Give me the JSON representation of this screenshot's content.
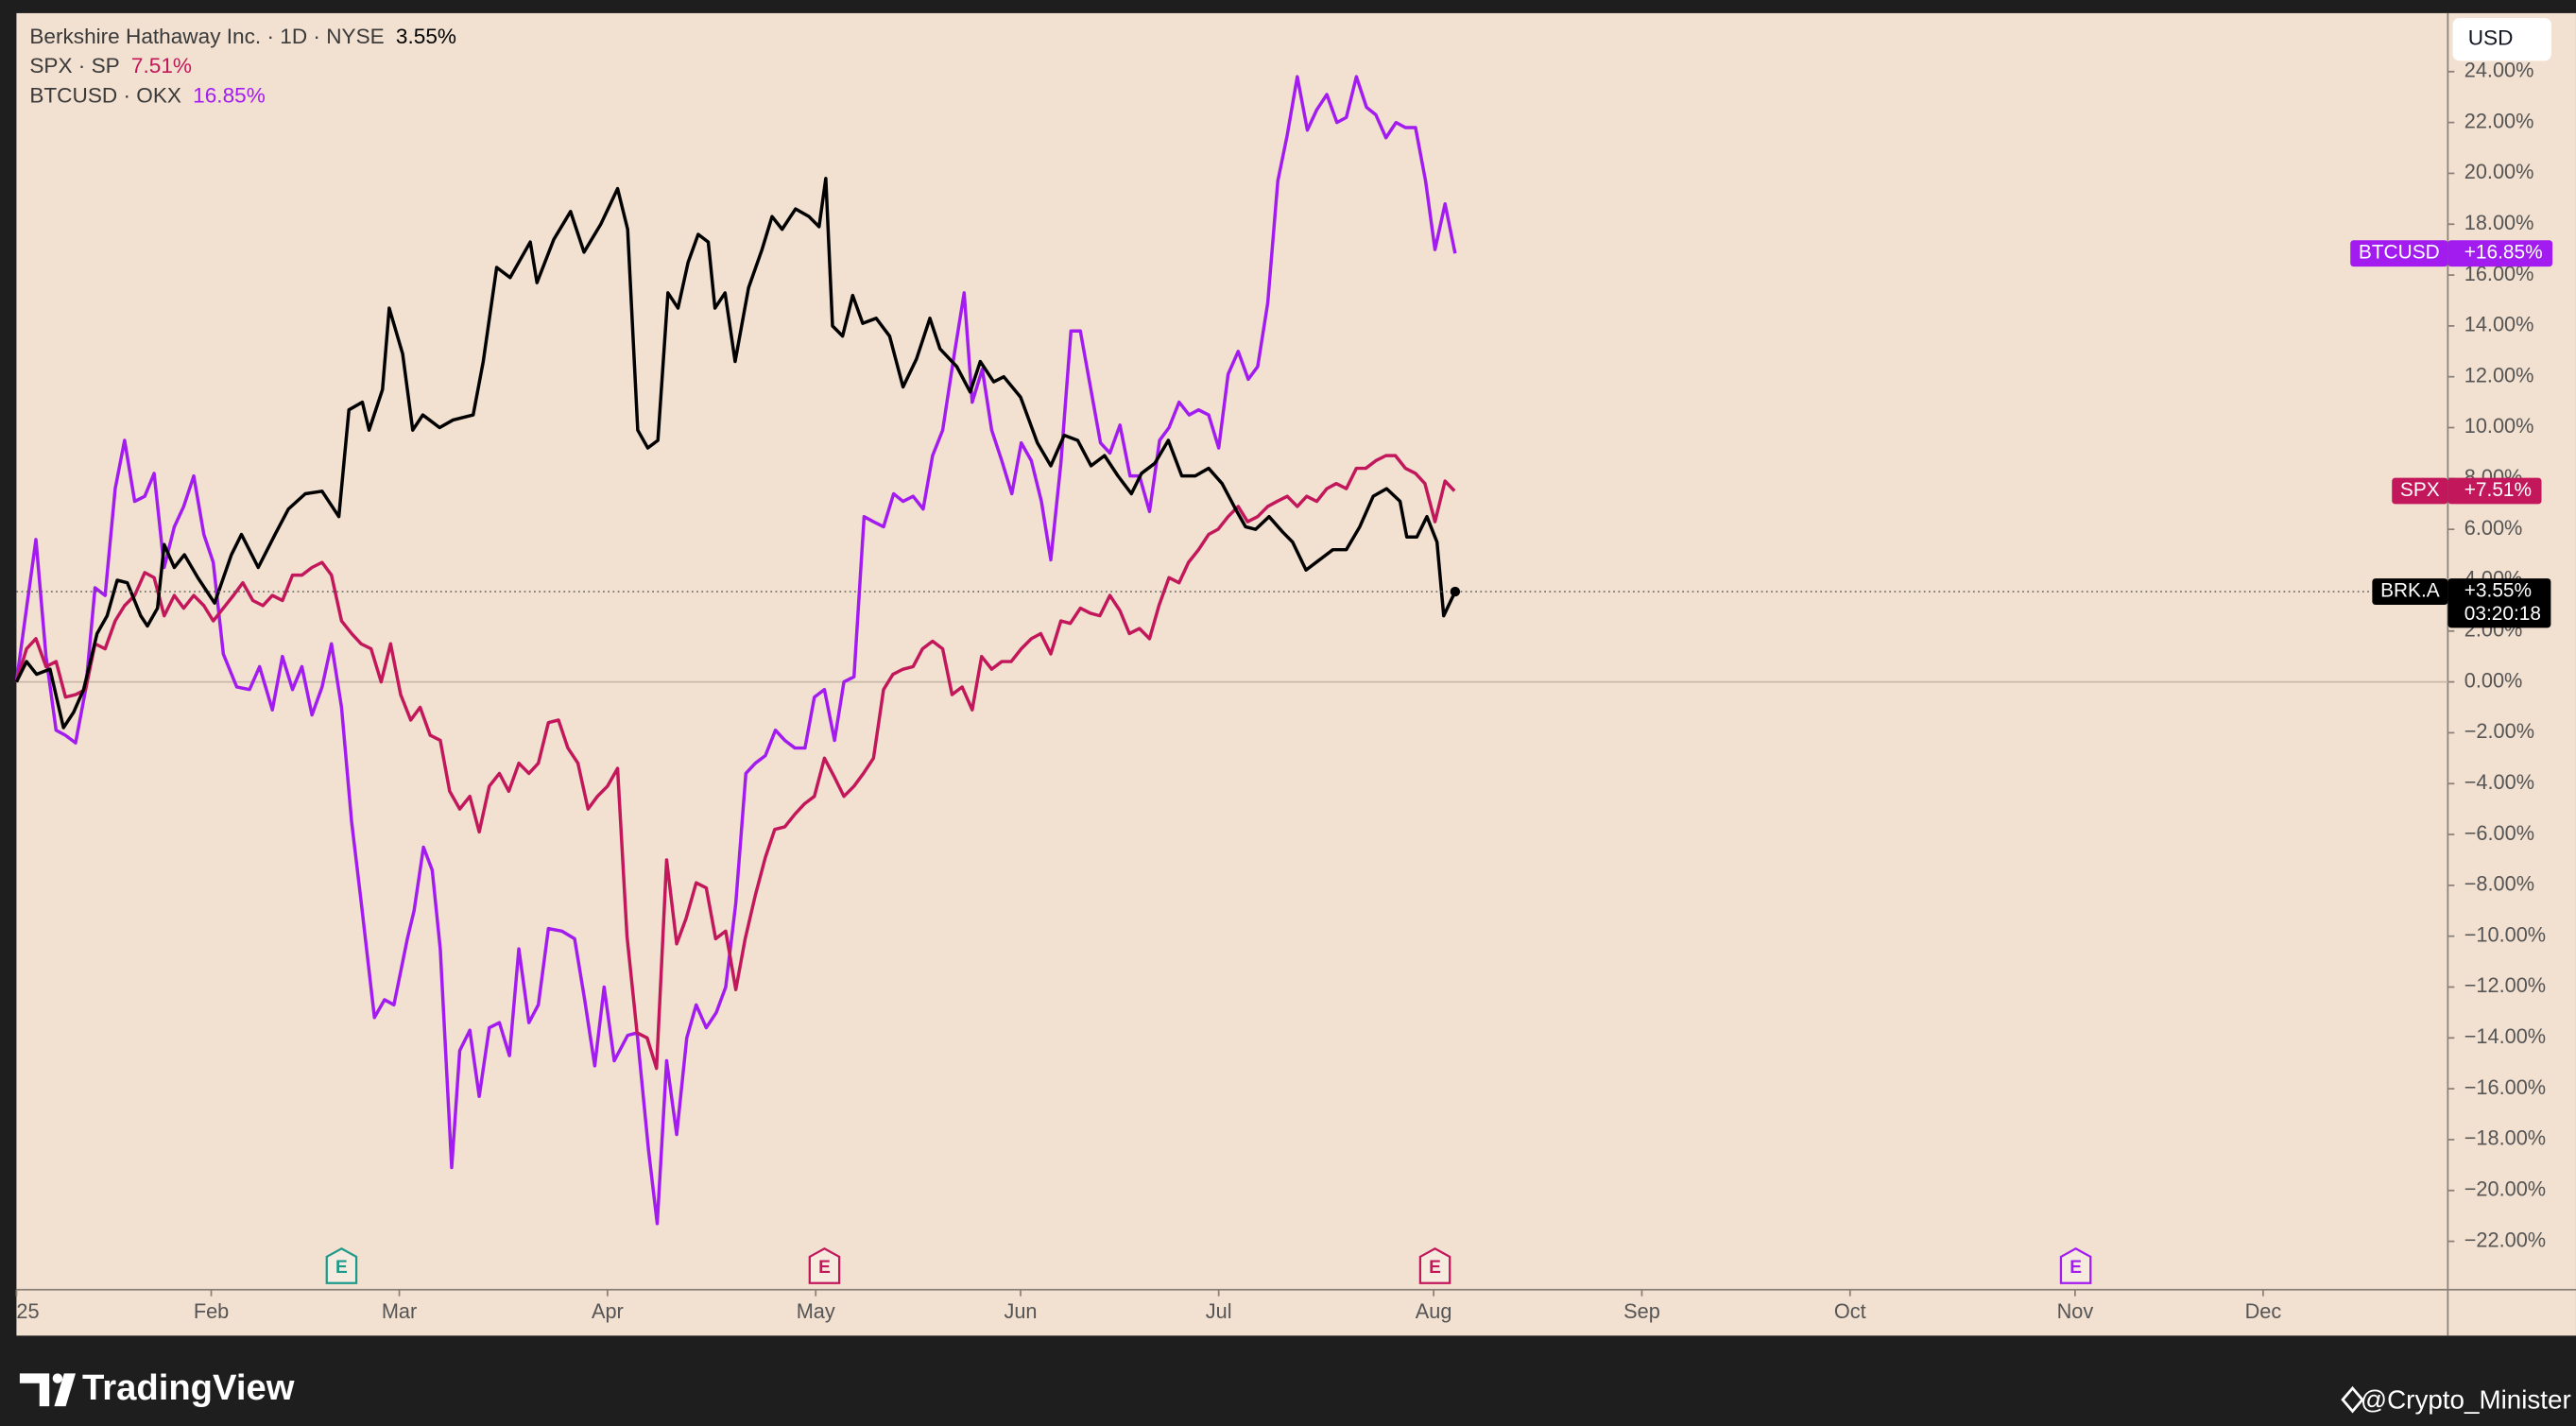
{
  "chart_data": {
    "type": "line",
    "xlim": [
      0,
      362
    ],
    "xticks": [
      {
        "value": 0,
        "label": "25"
      },
      {
        "value": 29,
        "label": "Feb"
      },
      {
        "value": 57,
        "label": "Mar"
      },
      {
        "value": 88,
        "label": "Apr"
      },
      {
        "value": 119,
        "label": "May"
      },
      {
        "value": 149.5,
        "label": "Jun"
      },
      {
        "value": 179,
        "label": "Jul"
      },
      {
        "value": 211,
        "label": "Aug"
      },
      {
        "value": 242,
        "label": "Sep"
      },
      {
        "value": 273,
        "label": "Oct"
      },
      {
        "value": 306.5,
        "label": "Nov"
      },
      {
        "value": 334.5,
        "label": "Dec"
      }
    ],
    "ylim": [
      -23.9,
      26.3
    ],
    "yticks": [
      {
        "value": -22,
        "label": "−22.00%"
      },
      {
        "value": -20,
        "label": "−20.00%"
      },
      {
        "value": -18,
        "label": "−18.00%"
      },
      {
        "value": -16,
        "label": "−16.00%"
      },
      {
        "value": -14,
        "label": "−14.00%"
      },
      {
        "value": -12,
        "label": "−12.00%"
      },
      {
        "value": -10,
        "label": "−10.00%"
      },
      {
        "value": -8,
        "label": "−8.00%"
      },
      {
        "value": -6,
        "label": "−6.00%"
      },
      {
        "value": -4,
        "label": "−4.00%"
      },
      {
        "value": -2,
        "label": "−2.00%"
      },
      {
        "value": 0,
        "label": "0.00%"
      },
      {
        "value": 2,
        "label": "2.00%"
      },
      {
        "value": 4,
        "label": "4.00%"
      },
      {
        "value": 6,
        "label": "6.00%"
      },
      {
        "value": 8,
        "label": "8.00%"
      },
      {
        "value": 10,
        "label": "10.00%"
      },
      {
        "value": 12,
        "label": "12.00%"
      },
      {
        "value": 14,
        "label": "14.00%"
      },
      {
        "value": 16,
        "label": "16.00%"
      },
      {
        "value": 18,
        "label": "18.00%"
      },
      {
        "value": 20,
        "label": "20.00%"
      },
      {
        "value": 22,
        "label": "22.00%"
      },
      {
        "value": 24,
        "label": "24.00%"
      }
    ],
    "grid": false,
    "currency": "USD",
    "series": [
      {
        "name": "Berkshire Hathaway Inc. · 1D · NYSE",
        "color": "#000000",
        "change": {
          "value": 3.55,
          "label": "3.55%"
        },
        "tag": {
          "name": "BRK.A",
          "value": 3.55,
          "label": "+3.55%",
          "countdown": "03:20:18"
        },
        "price_line": true,
        "x": [
          0,
          1.5,
          3,
          5,
          7,
          8.5,
          10,
          12,
          13.5,
          15,
          16.5,
          18.5,
          19.5,
          21,
          22,
          23.5,
          25,
          27,
          29.5,
          32,
          33.5,
          36,
          38.5,
          40.5,
          43,
          45.5,
          48,
          49.5,
          51.5,
          52.5,
          54.5,
          55.5,
          57.5,
          59,
          60.5,
          63,
          65,
          68,
          69.5,
          71.5,
          73.5,
          76.5,
          77.5,
          80,
          82.5,
          84.5,
          87,
          89.5,
          91,
          92.5,
          94,
          95.5,
          97,
          98.5,
          100,
          101.5,
          103,
          104,
          105.5,
          107,
          109,
          111,
          112.5,
          114,
          116,
          118,
          119.5,
          120.5,
          121.5,
          123,
          124.5,
          126,
          128,
          130,
          132,
          134,
          136,
          137.5,
          140,
          142,
          143.5,
          145.5,
          147,
          149.5,
          152,
          154,
          156,
          158,
          160,
          162,
          164,
          166,
          167.5,
          169.5,
          171.5,
          173.5,
          175.5,
          177.5,
          179.5,
          181.5,
          183,
          184.5,
          186.5,
          188.5,
          190,
          192,
          194,
          196,
          198,
          200,
          202,
          204,
          206,
          207,
          208.5,
          210,
          211.5,
          212.5,
          214.2
        ],
        "values": [
          0,
          0.8,
          0.3,
          0.5,
          -1.8,
          -1.2,
          -0.3,
          1.9,
          2.6,
          4.0,
          3.9,
          2.6,
          2.2,
          2.9,
          5.4,
          4.5,
          5.0,
          4.1,
          3.1,
          5.0,
          5.8,
          4.5,
          5.8,
          6.8,
          7.4,
          7.5,
          6.5,
          10.7,
          11.0,
          9.9,
          11.5,
          14.7,
          12.9,
          9.9,
          10.5,
          10.0,
          10.3,
          10.5,
          12.6,
          16.3,
          15.9,
          17.3,
          15.7,
          17.4,
          18.5,
          16.9,
          18.0,
          19.4,
          17.8,
          9.9,
          9.2,
          9.5,
          15.3,
          14.7,
          16.5,
          17.6,
          17.3,
          14.7,
          15.3,
          12.6,
          15.5,
          17.0,
          18.3,
          17.8,
          18.6,
          18.3,
          17.9,
          19.8,
          14.0,
          13.6,
          15.2,
          14.1,
          14.3,
          13.6,
          11.6,
          12.7,
          14.3,
          13.1,
          12.4,
          11.4,
          12.6,
          11.8,
          12.0,
          11.2,
          9.4,
          8.5,
          9.7,
          9.5,
          8.5,
          8.9,
          8.1,
          7.4,
          8.2,
          8.6,
          9.5,
          8.1,
          8.1,
          8.4,
          7.8,
          6.8,
          6.1,
          6.0,
          6.5,
          5.9,
          5.5,
          4.4,
          4.8,
          5.2,
          5.2,
          6.1,
          7.3,
          7.6,
          7.1,
          5.7,
          5.7,
          6.5,
          5.5,
          2.6,
          3.55
        ]
      },
      {
        "name": "SPX · SP",
        "color": "#c2185b",
        "change": {
          "value": 7.51,
          "label": "7.51%"
        },
        "tag": {
          "name": "SPX",
          "value": 7.51,
          "label": "+7.51%"
        },
        "x": [
          0,
          1.5,
          2.9,
          4.4,
          5.9,
          7.3,
          8.8,
          10.3,
          11.7,
          13.2,
          14.7,
          16.1,
          17.6,
          19.1,
          20.5,
          22.0,
          23.5,
          24.9,
          26.4,
          27.9,
          29.3,
          30.8,
          32.3,
          33.7,
          35.2,
          36.7,
          38.1,
          39.6,
          41.1,
          42.5,
          44.0,
          45.5,
          46.9,
          48.4,
          49.9,
          51.3,
          52.8,
          54.3,
          55.7,
          57.2,
          58.7,
          60.1,
          61.6,
          63.1,
          64.5,
          66.0,
          67.5,
          68.9,
          70.4,
          71.9,
          73.3,
          74.8,
          76.3,
          77.7,
          79.2,
          80.7,
          82.1,
          83.6,
          85.1,
          86.5,
          88.0,
          89.5,
          90.9,
          92.4,
          93.9,
          95.3,
          96.8,
          98.3,
          99.7,
          101.2,
          102.7,
          104.1,
          105.6,
          107.1,
          108.5,
          110.0,
          111.5,
          112.9,
          114.4,
          115.9,
          117.3,
          118.8,
          120.3,
          121.7,
          123.2,
          124.7,
          126.1,
          127.6,
          129.1,
          130.5,
          132.0,
          133.5,
          134.9,
          136.4,
          137.9,
          139.3,
          140.8,
          142.3,
          143.7,
          145.2,
          146.7,
          148.1,
          149.6,
          151.1,
          152.5,
          154.0,
          155.5,
          156.9,
          158.4,
          159.9,
          161.3,
          162.8,
          164.3,
          165.7,
          167.2,
          168.7,
          170.1,
          171.6,
          173.1,
          174.5,
          176.0,
          177.5,
          178.9,
          180.4,
          181.9,
          183.3,
          184.8,
          186.3,
          187.7,
          189.2,
          190.7,
          192.1,
          193.6,
          195.1,
          196.5,
          198.0,
          199.5,
          200.9,
          202.4,
          203.9,
          205.3,
          206.8,
          208.3,
          209.7,
          211.2,
          212.7,
          214.1
        ],
        "values": [
          0,
          1.3,
          1.7,
          0.6,
          0.8,
          -0.6,
          -0.5,
          -0.3,
          1.5,
          1.3,
          2.4,
          3.0,
          3.4,
          4.3,
          4.1,
          2.6,
          3.4,
          2.9,
          3.4,
          3.0,
          2.4,
          2.9,
          3.4,
          3.9,
          3.2,
          3.0,
          3.4,
          3.2,
          4.2,
          4.2,
          4.5,
          4.7,
          4.2,
          2.4,
          1.9,
          1.5,
          1.3,
          0,
          1.5,
          -0.5,
          -1.5,
          -1.0,
          -2.1,
          -2.3,
          -4.3,
          -5.0,
          -4.5,
          -5.9,
          -4.1,
          -3.6,
          -4.3,
          -3.2,
          -3.6,
          -3.2,
          -1.6,
          -1.5,
          -2.6,
          -3.2,
          -5.0,
          -4.5,
          -4.1,
          -3.4,
          -10.0,
          -13.8,
          -14.0,
          -15.2,
          -7.0,
          -10.3,
          -9.3,
          -7.9,
          -8.1,
          -10.1,
          -9.8,
          -12.1,
          -10.1,
          -8.4,
          -6.9,
          -5.8,
          -5.7,
          -5.2,
          -4.8,
          -4.5,
          -3.0,
          -3.7,
          -4.5,
          -4.1,
          -3.6,
          -3.0,
          -0.3,
          0.3,
          0.5,
          0.6,
          1.3,
          1.6,
          1.3,
          -0.5,
          -0.2,
          -1.1,
          1.0,
          0.5,
          0.8,
          0.8,
          1.3,
          1.7,
          1.9,
          1.1,
          2.4,
          2.3,
          2.9,
          2.7,
          2.6,
          3.4,
          2.8,
          1.9,
          2.1,
          1.7,
          3.0,
          4.1,
          3.9,
          4.7,
          5.2,
          5.8,
          6.0,
          6.5,
          6.9,
          6.3,
          6.5,
          6.9,
          7.1,
          7.3,
          6.9,
          7.3,
          7.1,
          7.6,
          7.8,
          7.6,
          8.4,
          8.4,
          8.7,
          8.9,
          8.9,
          8.4,
          8.2,
          7.8,
          6.3,
          7.9,
          7.51
        ]
      },
      {
        "name": "BTCUSD · OKX",
        "color": "#a21cf0",
        "change": {
          "value": 16.85,
          "label": "16.85%"
        },
        "tag": {
          "name": "BTCUSD",
          "value": 16.85,
          "label": "+16.85%"
        },
        "x": [
          0,
          1.5,
          2.9,
          4.4,
          5.9,
          7.3,
          8.8,
          10.3,
          11.7,
          13.2,
          14.7,
          16.1,
          17.6,
          19.1,
          20.5,
          22.0,
          23.5,
          24.9,
          26.4,
          27.9,
          29.3,
          30.8,
          32.8,
          34.7,
          36.2,
          38.1,
          39.6,
          41.1,
          42.5,
          44.0,
          45.5,
          46.9,
          48.4,
          49.9,
          51.3,
          53.3,
          54.8,
          56.2,
          58.2,
          59.2,
          60.6,
          61.9,
          63.1,
          64.8,
          66.0,
          67.5,
          68.9,
          70.4,
          71.9,
          73.4,
          74.8,
          76.3,
          77.7,
          79.2,
          81.2,
          83.1,
          84.6,
          86.1,
          87.5,
          89.0,
          91.0,
          92.4,
          94.1,
          95.4,
          96.8,
          98.3,
          99.8,
          101.2,
          102.7,
          104.2,
          105.6,
          107.1,
          108.6,
          110.0,
          111.5,
          113.0,
          114.4,
          115.9,
          117.4,
          118.8,
          120.3,
          121.8,
          123.2,
          124.7,
          126.2,
          127.6,
          129.1,
          130.6,
          132.0,
          133.5,
          135.0,
          136.4,
          137.9,
          139.4,
          141.1,
          142.3,
          143.8,
          145.2,
          146.7,
          148.2,
          149.6,
          151.1,
          152.6,
          154.0,
          155.5,
          157.0,
          158.4,
          159.9,
          161.4,
          162.8,
          164.3,
          165.8,
          167.2,
          168.7,
          170.2,
          171.6,
          173.1,
          174.6,
          176.0,
          177.5,
          179.0,
          180.4,
          181.9,
          183.4,
          184.8,
          186.3,
          187.8,
          189.2,
          190.7,
          192.2,
          193.6,
          195.1,
          196.6,
          198.0,
          199.5,
          201.0,
          202.4,
          203.9,
          205.4,
          206.8,
          208.3,
          209.8,
          211.2,
          212.7,
          214.2
        ],
        "values": [
          0,
          2.9,
          5.6,
          1.0,
          -1.9,
          -2.1,
          -2.4,
          -0.3,
          3.7,
          3.4,
          7.6,
          9.5,
          7.1,
          7.3,
          8.2,
          4.5,
          6.1,
          6.9,
          8.1,
          5.8,
          4.7,
          1.1,
          -0.2,
          -0.3,
          0.6,
          -1.1,
          1.0,
          -0.3,
          0.6,
          -1.3,
          -0.2,
          1.5,
          -1.0,
          -5.5,
          -8.6,
          -13.2,
          -12.5,
          -12.7,
          -10.1,
          -9.0,
          -6.5,
          -7.4,
          -10.5,
          -19.1,
          -14.5,
          -13.7,
          -16.3,
          -13.6,
          -13.4,
          -14.7,
          -10.5,
          -13.4,
          -12.7,
          -9.7,
          -9.8,
          -10.1,
          -12.5,
          -15.1,
          -12.0,
          -14.9,
          -13.9,
          -13.8,
          -18.4,
          -21.3,
          -14.9,
          -17.8,
          -14.0,
          -12.7,
          -13.6,
          -13.0,
          -12.0,
          -8.7,
          -3.6,
          -3.2,
          -2.9,
          -1.9,
          -2.3,
          -2.6,
          -2.6,
          -0.6,
          -0.3,
          -2.3,
          0,
          0.2,
          6.5,
          6.3,
          6.1,
          7.4,
          7.1,
          7.3,
          6.8,
          8.9,
          9.9,
          12.5,
          15.3,
          11.0,
          12.3,
          9.9,
          8.7,
          7.4,
          9.4,
          8.7,
          7.1,
          4.8,
          8.6,
          13.8,
          13.8,
          11.6,
          9.4,
          9.0,
          10.1,
          8.1,
          8.1,
          6.7,
          9.5,
          10.0,
          11.0,
          10.5,
          10.7,
          10.5,
          9.2,
          12.1,
          13.0,
          11.9,
          12.4,
          14.9,
          19.7,
          21.5,
          23.8,
          21.7,
          22.5,
          23.1,
          22.0,
          22.2,
          23.8,
          22.6,
          22.3,
          21.4,
          22.0,
          21.8,
          21.8,
          19.7,
          17.0,
          18.8,
          16.85
        ]
      }
    ],
    "events": [
      {
        "x": 48.4,
        "label": "E",
        "color": "#1e9a8a"
      },
      {
        "x": 120.3,
        "label": "E",
        "color": "#c2185b"
      },
      {
        "x": 211.2,
        "label": "E",
        "color": "#c2185b"
      },
      {
        "x": 306.6,
        "label": "E",
        "color": "#a21cf0"
      }
    ]
  },
  "footer": {
    "logo": "TradingView",
    "watermark": "@Crypto_Minister"
  }
}
